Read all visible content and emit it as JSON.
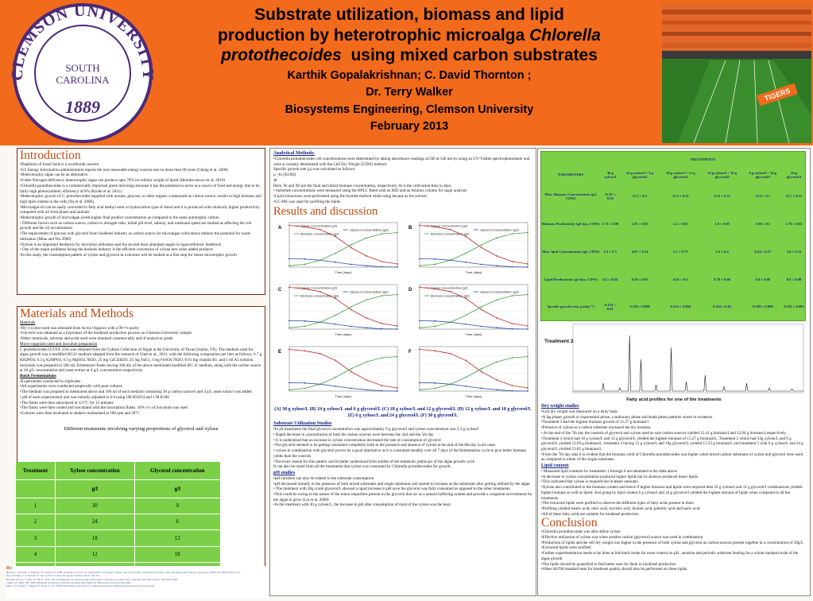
{
  "header": {
    "title_line1": "Substrate utilization, biomass and lipid",
    "title_line2_a": "production by heterotrophic microalga ",
    "title_line2_b": "Chlorella",
    "title_line3_a": "protothecoides",
    "title_line3_b": "  using mixed carbon substrates",
    "authors_line1": "Karthik Gopalakrishnan; C. David Thornton ;",
    "authors_line2": "Dr. Terry Walker",
    "affiliation": "Biosystems Engineering, Clemson University",
    "date": "February 2013"
  },
  "logo": {
    "top": "CLEMSON UNIVERSITY",
    "middle1": "SOUTH",
    "middle2": "CAROLINA",
    "year": "1889"
  },
  "stadium": {
    "banner": "TIGERS"
  },
  "introduction": {
    "title": "Introduction",
    "bullets": [
      "•Depletion of fossil fuels is a worldwide concern",
      "•US Energy Information administration reports the non-renewable energy sources last no more than 90 years (Cheng et al. 2006)",
      "•Heterotrophic algae can be an alternative",
      "•Under Nitrogen deficiency heterotrophic algae can produce upto 70% its cellular weight of lipids (Heredia-arroyo et al. 2010)",
      "•Chlorella protothecoides is a commercially important green microalga because it has the potential to serve as a source of food and energy due to its fairly high photosynthetic efficiency of 8% (Krohn et al. 2011)",
      "•Heterotrophic growth of C. protothecoides supplied with acetate, glucose, or other organic compounds as carbon source, results in high biomass and high lipid content in the cells (Xu et al. 2006).",
      "•Microalgal oil can be easily converted to fatty acid methyl ester or hydrocarbon type of diesel and it is produced with relatively higher productivity compared with oil from plants and animals",
      "•Heterotrophic growth of microalgae yields higher final product concentration as compared to the same autotrophic culture.",
      "• Different factors such as carbon source, carbon to nitrogen ratio, initial pH level, salinity, and rotational speed are studied as affecting the cell growth and the oil accumulation",
      "•The replacement of glucose with glycerol from biodiesel industry as carbon source for microalgae cultivations reduces the potential for waste utilization (Miao and Wu 2006)",
      "•Xylose is an important feedstock for microbial utilization and the second most abundant sugars in lignocellulosic feedstock",
      "• One of the major problems facing the biofuels industry is the efficient conversion of xylose into value added products",
      "•In this study, the consumption pattern of xylose and glycerol in a mixture will be studied as a first step for future mixotrophic growth"
    ]
  },
  "methods": {
    "title": "Materials and Methods",
    "materials_heading": "Materials",
    "materials": [
      "•D(+)-xylose used was obtained from Acros Organics with a 99+% purity",
      "•Glycerol was obtained as a byproduct of the biodiesel production process on Clemson University campus",
      "•Other chemicals, solvents and acids used were obtained commercially and of analytical grade."
    ],
    "micro_heading": "Micro-organism used and inoculum preparation",
    "micro_text": "C protothecoides (UTEX 256) was obtained from the Culture Collection of Algae at the University of Texas (Austin, TX). The medium used for algae growth was a modified BG11 medium adapted from the research of Chen et al., 2011, with the following composition per liter as follows: 0.7 g KH2PO4, 0.3 g K2HPO4, 0.3 g MgSO4.7H2O, 25 mg CaCl2H2O, 25 mg NaCl, 3 mg FeSO4.7H2O, 0.01 mg vitamin B1, and 1 ml A5 solution. Inoculum was prepared to 500 mL Erlenmeyer flasks having 100 mL of the above mentioned modified BG 11 medium, along with the carbon source at 30 g/L concentration and yeast extract at 4 g/L concentration respectively.",
    "batch_heading": "Batch Fermentations",
    "batch": [
      "•Experiments conducted in triplicates",
      "•All experiments were conducted aseptically with pure cultures",
      "•The medium was prepared as mentioned above and 100 ml of each medium containing 30 g carbon source/l and 4 g/L yeast extract was added",
      "• pH of each experimental unit was initially adjusted to 6.8 using 1M H2SO4 and 1 M KOH",
      "•The flasks were then autoclaved at 121°C for 15 minutes",
      "•The flasks were then cooled and inoculated with the inoculation flasks. 10% v/v of inoculum was used",
      "•Cultures were then incubated in shakers maintained at 160 rpm and 28°C"
    ],
    "table_caption": "Different treatments involving varying proportions of glycerol and xylose",
    "table_headers": [
      "Treatment",
      "Xylose concentration",
      "Glycerol concentration"
    ],
    "table_units": [
      "",
      "g/l",
      "g/l"
    ],
    "table_rows": [
      [
        "1",
        "30",
        "0"
      ],
      [
        "2",
        "24",
        "6"
      ],
      [
        "3",
        "18",
        "12"
      ],
      [
        "4",
        "12",
        "18"
      ],
      [
        "5",
        "6",
        "24"
      ],
      [
        "6",
        "0",
        "30"
      ]
    ]
  },
  "references": {
    "label": "Re",
    "left_lines": [
      "Breuer, L. Bossche, J. Ramirez, N. Jentinie, F. 2009. A model in of the U.S. Department of Energy's aquatic species Program: biodiesel from algae. National Renewable Energy Laboratory, NREL/TP-580-24190. USA.",
      "Xu, T. Krohn, C. T. Mcneff, B. Yan and D. Nowlan. Bioresour Technol. 2011. 102: 94.",
      "Heredia-Arroyo, T. Wei, W. Hu, B. 2010. Oil accumulation via heterotrophic/mixotrophic Chlorella protothecoides. Appl Biochem Biotechnol. 162:1978-1995.",
      "Cheng, W. Miao, SH. 2006. Biodiesel production from heterotrophic microalgal oil. Bioresour Technol 97:841-846.",
      "Miao, X. D. Ping, Z. Sheng, W. Wang, Z. Xu. 2009. Microbial production of L-Lipid production by different heterotrophic growth modes."
    ],
    "right_lines": [
      "Rodriguez-Ortiz. F. Wu, H. Ko, H. 2009. Oil accumulation via heterotrophic/mixotrophic Chlorella protothecoides. Appl Biochem Biotechnol. 162:1978-1995.",
      "Cheng, W. Miao, SH. 2006. Biodiesel production from heterotrophic microalgal oil. Bioresour Technol 97:841-846.",
      "Miao, X. Wu, Q. 2006. Biodiesel production from heterotrophic microalgal oil. Bioresour Technol 97:841-846.",
      "Xu, H. Miao, X. Wu, Q. 2006. High quality biodiesel production from a microalga Chlorella protothecoides by heterotrophic growth in fermenters. J Biotechnol. 126: 499-507.",
      "Thompson, P. Liu, SH. 2010. Different patterns of xylose and glucose in lignocellulosic feedstock. Appl Microbiol.",
      "Chen, YH. TH Walker. 2011. Biomass and lipid production of heterotrophic microalgae Chlorella protothecoides by using biodiesel-derived crude glycerol. Biotechnol Lett 33:1973-1983."
    ]
  },
  "analytical": {
    "heading": "Analytical Methods:",
    "lines": [
      "•Chlorella protothecoides cell concentrations were determined by taking absorbance readings at OD at 540 nm by using an UV/Visible spectrophotometer and were accurately determined with the Cell Dry Weight (CDW) method.",
      "Specific growth rate (μ) was calculated as follows:",
      "μ =ln (Xt/X0)",
      "Δt",
      "Here, Xt and X0 are the final and initial biomass concentration, respectively. Δt is the cultivation time in days.",
      "• Substrate concentrations were measured using the HPLC fitted with an RID and an Aminex column for sugar analysis",
      "•Lipid extractions were performed using the Soxhlet method while using hexane as the solvent",
      "•GC-MS was used for profiling the lipids"
    ]
  },
  "results": {
    "title": "Results and discussion",
    "chart_caption": "(A) 30 g xylose/L (B) 24 g xylose/L and 6 g glycerol/L (C) 18 g xylose/L and 12 g glycerol/L (D) 12 g xylose/L and 18 g glycerol/L (E) 6 g xylose/L and 24 g glycerol/L (F) 30 g glycerol/L",
    "substrate_heading": "Substrate Utilization Studies",
    "substrate": [
      "•In all treatments the final glycerol concentration was approximately 0 g glycerol/l and xylose concentration was 2.3 g xylose/l",
      "• Rapid decrease in concentration of both the carbon sources were between the 2nd and the 5th day",
      "• It is understood that an increase in xylose concentration decreased the rate of consumption of glycerol",
      "•The glycerol seemed to be getting consumed completely both in the presence and absence of xylose at the end of the 6th day in all cases",
      "• xylose in combination with glycerol proves be a good alternative as it is consumed steadily over all 7 days of the fermentation cycle to give better biomass yields than the controls",
      "•The exact reason for this pattern can be better understood from studies of the metabolic pathways of the algae growth cycle",
      " It can also be noted from all the treatments that xylose was consumed by Chlorella protothecoides for growth."
    ],
    "ph_heading": "pH studies",
    "ph": [
      "•pH variation can also be related to the substrate consumption",
      "•pH decreased initially in the presence of both mixed substrates and single substrates and started to increase as the substrates after getting utilized by the algae",
      "• The treatment with 30g crude glycerol/L showed a rapid increase in pH once the glycerol was fully consumed as opposed to the other treatments.",
      "•This could be owing to the nature of the minor impurities present in the glycerol that act as a natural buffering system and provide a congenial environment for the algae to grow (Liu et al. 2008)",
      "•In the treatment with 30 g xylose/L, the increase in pH after consumption of most of the xylose was the least"
    ]
  },
  "treatments_table": {
    "title": "TREATMENTS",
    "headers": [
      "PARAMETERS",
      "30 g xylose/l",
      "24 g xylose/l + 6 g glycerol/l",
      "18 g xylose/l + 12 g glycerol/l",
      "12 g xylose/l + 18 g glycerol/l",
      "6 g xylose/l + 24 g glycerol/l",
      "30 g glycerol/l"
    ],
    "rows": [
      [
        "Max. Biomass Concentration (g/l, CDW)",
        "12.07 ± 0.56",
        "12.7 ± 0.2",
        "15.3 ± 0.21",
        "13.3 ± 0.37",
        "13.8 ± 0.7",
        "12.7 ± 0.37"
      ],
      [
        "Biomass Productivity (g/l day, CDW)",
        "1.73 ± 0.08",
        "1.81 ± 0.03",
        "2.2 ± 0.03",
        "1.9 ± 0.05",
        "1.98 ± 0.1",
        "1.78 ± 0.05"
      ],
      [
        "Max. lipid Concentration (g/l, CDW)",
        "1.3 ± 0.3",
        "4.07 ± 0.34",
        "5.7 ± 0.75",
        "5.4 ± 0.4",
        "6.24 ± 0.57",
        "5.6 ± 0.53"
      ],
      [
        "Lipid Productivity (g/l day, CDW)",
        "0.2 ± 0.04",
        "0.58 ± 0.05",
        "0.81 ± 0.1",
        "0.78 ± 0.06",
        "0.9 ± 0.08",
        "0.8 ± 0.08"
      ],
      [
        "Specific growth rate, μ (day⁻¹)",
        "0.159 ± 0.01",
        "0.158 ± 0.006",
        "0.214 ± 0.004",
        "0.162 ± 0.02",
        "0.169 ± 0.008",
        "0.156 ± 0.001"
      ]
    ]
  },
  "chromatogram": {
    "label": "Treatment 2",
    "caption": "Fatty acid profiles for one of the treatments"
  },
  "findings": {
    "dry_heading": "Dry weight studies",
    "dry": [
      "•Cell dry weight was measured on a daily basis",
      "•A lag phase, growth or exponential phase, a stationary phase and death phase patterns where in existence",
      "•Treatment 3 had the highest biomass growth of 15.27 g biomass/l",
      "•Presence of xylose as a carbon substrate increased the dry biomass",
      "• At the end of the 7th day the controls of glycerol and xylose used as sole carbon sources yielded 12.41 g biomass/l and 12.04 g biomass/l,respectively",
      "•Treatment 3 which had 18 g xylose/L and 12 g glycerol/L yielded the highest biomass of 15.27 g biomass/L. Treatment 2 which had 24g xylose/L and 6 g glycerol/L yielded 12.69 g biomass/L, treatment 4 having 12 g xylose/L and 18g glycerol/L yielded 13.33 g biomass/L and treatment 5 with 6 g xylose/L and 24 g glycerol/L yielded 13.82 g biomass/L.",
      "•From the 7th day data it is evident that the biomass yield of Chlorella protothecoides was higher when mixed carbon substrates of xylose and glycerol were used as compared to either of the single substrates."
    ],
    "lipid_heading": "Lipid content",
    "lipid": [
      "• Measured lipid contents for treatments 1 through 6 are tabulated in the table above",
      "•A decrease in xylose concentration produced higher lipids but its absence produced lesser lipids",
      "•This indicated that xylose is required but in lesser amounts",
      "•Xylose also contributed to the biomass content and hence if higher biomass and lipids were required then 18 g xylose/l and 12 g glycerol/l combinations yielded higher biomass as well as lipids .Just going by lipid content 6 g xylose/l and 24 g glycerol/l yielded the highest amount of lipids when compared to all the treatments",
      "•The extracted lipids were profiled to observe the different types of fatty acids present in them",
      "•Profiling yielded stearic acid, oleic acid, myristic acid, linoleic acid, palmitic acid and lauric acid",
      "•All of these fatty acids are suitable for biodiesel production"
    ],
    "conclusion_title": "Conclusion",
    "conclusion": [
      "•Chlorella protothecoides was able utilize xylose",
      "•Effective utilization of xylose was when another carbon (glycerol) source was used in combination",
      "•Production of lipids and the cell dry weight was higher in the presence of both xylose and glycerol as carbon sources present together at a concentration of 30g/L",
      "•Extracted lipids were profiled",
      "•Further experimentation needs to be done at fed-batch mode for more control on pH , aeration and periodic substrate feeding for a whole standard scale of the algae growth",
      "•The lipids should be quantified to find better uses for them in biodiesel production",
      "•Other ASTM standard tests for biodiesel quality should also be performed on these lipids."
    ]
  },
  "subcharts": [
    {
      "id": "A",
      "legend1": "Xylose Concentration (g/l)",
      "legend2": "Glycerol Concentration (g/l)",
      "legend3": "Biomass concentration (g/l)",
      "legend4": "pH",
      "xlabel": "Time (days)"
    },
    {
      "id": "B",
      "legend1": "Xylose Concentration (g/l)",
      "legend2": "Glycerol Concentration (g/l)",
      "legend3": "Biomass concentration (g/l)",
      "legend4": "pH",
      "xlabel": "Time (days)"
    },
    {
      "id": "C",
      "legend1": "Xylose Concentration (g/l)",
      "legend2": "Glycerol Concentration (g/l)",
      "legend3": "Biomass concentration (g/l)",
      "legend4": "pH",
      "xlabel": "Time (days)"
    },
    {
      "id": "D",
      "legend1": "Xylose Concentration (g/l)",
      "legend2": "Glycerol Concentration (g/l)",
      "legend3": "Biomass concentration (g/l)",
      "legend4": "pH",
      "xlabel": "Time (days)"
    },
    {
      "id": "E",
      "xlabel": "Time (days)"
    },
    {
      "id": "F",
      "xlabel": "Time (days)"
    }
  ],
  "colors": {
    "header_bg": "#f26a1b",
    "logo_purple": "#4b2a7a",
    "table_green": "#7bd048",
    "title_orange": "#c04a10"
  }
}
